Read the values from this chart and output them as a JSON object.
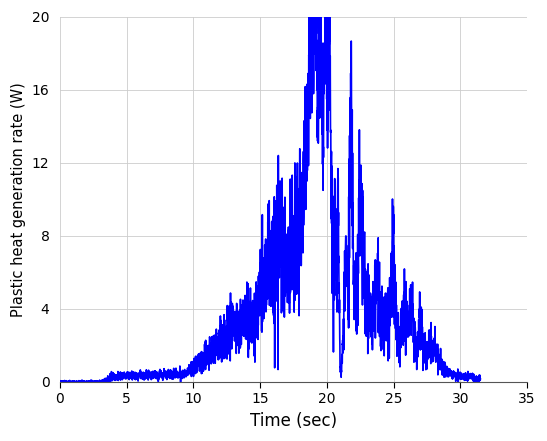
{
  "title": "",
  "xlabel": "Time (sec)",
  "ylabel": "Plastic heat generation rate (W)",
  "xlim": [
    0,
    35
  ],
  "ylim": [
    0,
    20
  ],
  "xticks": [
    0,
    5,
    10,
    15,
    20,
    25,
    30,
    35
  ],
  "yticks": [
    0,
    4,
    8,
    12,
    16,
    20
  ],
  "line_color": "#0000FF",
  "line_width": 1.2,
  "grid": true,
  "background_color": "#FFFFFF"
}
